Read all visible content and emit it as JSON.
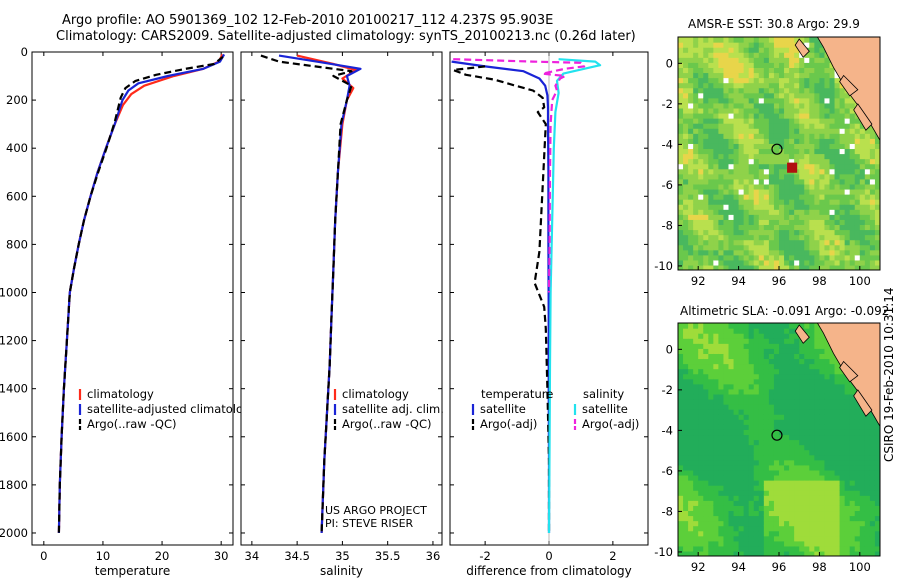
{
  "header": {
    "line1": "Argo profile: AO 5901369_102 12-Feb-2010 20100217_112 4.237S 95.903E",
    "line2": "Climatology: CARS2009. Satellite-adjusted climatology: synTS_20100213.nc (0.26d later)"
  },
  "side_label": "CSIRO 19-Feb-2010 10:31:14",
  "colors": {
    "climatology": "#ff2a1a",
    "satellite": "#1a24d6",
    "argo": "#000000",
    "satellite_salinity": "#22e2ee",
    "argo_salinity": "#ee22dd",
    "land": "#f5b48a",
    "coast": "#000000"
  },
  "chart_data": [
    {
      "type": "line",
      "id": "temperature",
      "xlabel": "temperature",
      "ylabel": "",
      "xlim": [
        -2,
        32
      ],
      "ylim": [
        2050,
        0
      ],
      "xticks": [
        0,
        10,
        20,
        30
      ],
      "yticks": [
        0,
        200,
        400,
        600,
        800,
        1000,
        1200,
        1400,
        1600,
        1800,
        2000
      ],
      "legend": [
        "climatology",
        "satellite-adjusted climatology",
        "Argo(..raw -QC)"
      ],
      "series": [
        {
          "name": "climatology",
          "style": "solid",
          "color": "climatology",
          "x": [
            30.2,
            29.6,
            27,
            22,
            17,
            14.8,
            13.4,
            12,
            10.5,
            9.1,
            7.9,
            6.8,
            5.9,
            5.1,
            4.4,
            3.9,
            3.4,
            3.0,
            2.7,
            2.55
          ],
          "y": [
            10,
            40,
            70,
            100,
            140,
            175,
            220,
            300,
            400,
            500,
            600,
            700,
            800,
            900,
            1000,
            1200,
            1400,
            1600,
            1800,
            2000
          ]
        },
        {
          "name": "satellite-adjusted climatology",
          "style": "solid",
          "color": "satellite",
          "x": [
            30.5,
            29.8,
            27,
            21,
            16,
            14.3,
            13.3,
            12,
            10.5,
            9.1,
            7.9,
            6.8,
            5.9,
            5.1,
            4.4,
            3.9,
            3.4,
            3.0,
            2.7,
            2.55
          ],
          "y": [
            10,
            40,
            70,
            100,
            130,
            160,
            200,
            300,
            400,
            500,
            600,
            700,
            800,
            900,
            1000,
            1200,
            1400,
            1600,
            1800,
            2000
          ]
        },
        {
          "name": "Argo(..raw -QC)",
          "style": "dashed",
          "color": "argo",
          "x": [
            30.3,
            28.8,
            24,
            19,
            15.5,
            13.8,
            13,
            12,
            10.6,
            9.2,
            7.9,
            6.8,
            5.9,
            5.1,
            4.4,
            3.9,
            3.4,
            3.0,
            2.7,
            2.55
          ],
          "y": [
            20,
            50,
            70,
            95,
            120,
            150,
            190,
            290,
            400,
            500,
            600,
            700,
            800,
            900,
            1000,
            1200,
            1400,
            1600,
            1800,
            2000
          ]
        }
      ]
    },
    {
      "type": "line",
      "id": "salinity",
      "xlabel": "salinity",
      "ylabel": "",
      "xlim": [
        33.88,
        36.1
      ],
      "ylim": [
        2050,
        0
      ],
      "xticks": [
        34,
        34.5,
        35,
        35.5,
        36
      ],
      "xtick_labels": [
        "34",
        "34.5",
        "35",
        "35.5",
        "36"
      ],
      "legend": [
        "climatology",
        "satellite adj. clim.",
        "Argo(..raw -QC)"
      ],
      "annotation": [
        "US ARGO PROJECT",
        "PI: STEVE RISER"
      ],
      "series": [
        {
          "name": "climatology",
          "style": "solid",
          "color": "climatology",
          "x": [
            34.5,
            34.9,
            35.15,
            35.0,
            35.12,
            35.05,
            35.0,
            34.95,
            34.92,
            34.9,
            34.88,
            34.86,
            34.83,
            34.8,
            34.78,
            34.77
          ],
          "y": [
            15,
            50,
            75,
            110,
            150,
            200,
            300,
            500,
            700,
            900,
            1100,
            1300,
            1500,
            1700,
            1900,
            2000
          ]
        },
        {
          "name": "satellite adj. clim.",
          "style": "solid",
          "color": "satellite",
          "x": [
            34.3,
            34.8,
            35.2,
            35.05,
            35.08,
            35.05,
            34.99,
            34.95,
            34.92,
            34.9,
            34.88,
            34.86,
            34.83,
            34.8,
            34.78,
            34.77
          ],
          "y": [
            15,
            45,
            70,
            100,
            140,
            200,
            300,
            500,
            700,
            900,
            1100,
            1300,
            1500,
            1700,
            1900,
            2000
          ]
        },
        {
          "name": "Argo(..raw -QC)",
          "style": "dashed",
          "color": "argo",
          "x": [
            34.1,
            34.3,
            34.7,
            35.1,
            34.9,
            35.1,
            35.05,
            34.98,
            34.95,
            34.92,
            34.9,
            34.88,
            34.86,
            34.83,
            34.8,
            34.78,
            34.77
          ],
          "y": [
            15,
            40,
            60,
            80,
            100,
            140,
            200,
            300,
            500,
            700,
            900,
            1100,
            1300,
            1500,
            1700,
            1900,
            2000
          ]
        }
      ]
    },
    {
      "type": "line",
      "id": "difference",
      "xlabel": "difference from climatology",
      "ylabel": "",
      "xlim": [
        -3.1,
        3.1
      ],
      "ylim": [
        2050,
        0
      ],
      "xticks": [
        -2,
        0,
        2
      ],
      "legend_titles": [
        "temperature",
        "salinity"
      ],
      "legend": [
        "satellite",
        "Argo(-adj)",
        "satellite",
        "Argo(-adj)"
      ],
      "series": [
        {
          "name": "temperature satellite",
          "style": "solid",
          "color": "satellite",
          "x": [
            -3.05,
            -2.0,
            -0.8,
            -0.3,
            -0.12,
            -0.05,
            -0.03,
            -0.03,
            -0.02,
            -0.02,
            -0.01,
            -0.01,
            0,
            0
          ],
          "y": [
            40,
            60,
            80,
            110,
            140,
            180,
            230,
            300,
            500,
            800,
            1100,
            1400,
            1700,
            2000
          ]
        },
        {
          "name": "temperature Argo(-adj)",
          "style": "dashed",
          "color": "argo",
          "x": [
            -2.0,
            -3.0,
            -2.6,
            -1.7,
            -1.05,
            -0.5,
            -0.2,
            -0.15,
            -0.35,
            -0.1,
            -0.3,
            -0.45,
            -0.15,
            -0.1,
            -0.05,
            0,
            0
          ],
          "y": [
            60,
            75,
            95,
            115,
            140,
            160,
            190,
            230,
            250,
            300,
            830,
            960,
            1060,
            1150,
            1400,
            1700,
            2000
          ]
        },
        {
          "name": "salinity satellite",
          "style": "solid",
          "color": "satellite_salinity",
          "x": [
            0.3,
            1.45,
            1.6,
            1.1,
            0.45,
            0.25,
            0.3,
            0.2,
            0.15,
            0.1,
            0.05,
            0.03,
            0.02,
            0
          ],
          "y": [
            30,
            40,
            55,
            70,
            90,
            120,
            170,
            250,
            400,
            700,
            1000,
            1300,
            1600,
            2000
          ]
        },
        {
          "name": "salinity Argo(-adj)",
          "style": "dashed",
          "color": "argo_salinity",
          "x": [
            -3.0,
            -0.5,
            1.0,
            1.1,
            0.5,
            -0.2,
            0.5,
            0.35,
            0.2,
            0.25,
            0.1,
            0.05,
            0.03,
            0.02,
            0
          ],
          "y": [
            30,
            40,
            45,
            60,
            70,
            90,
            100,
            110,
            140,
            160,
            200,
            300,
            500,
            800,
            1000
          ]
        }
      ]
    },
    {
      "type": "heatmap",
      "id": "sst_map",
      "title": "AMSR-E SST: 30.8  Argo: 29.9",
      "xlim": [
        91,
        101
      ],
      "ylim": [
        -10.2,
        1.3
      ],
      "xticks": [
        92,
        94,
        96,
        98,
        100
      ],
      "yticks": [
        -10,
        -8,
        -6,
        -4,
        -2,
        0
      ],
      "marker": {
        "lon": 95.9,
        "lat": -4.237
      }
    },
    {
      "type": "heatmap",
      "id": "sla_map",
      "title": "Altimetric SLA: -0.091  Argo: -0.092",
      "xlim": [
        91,
        101
      ],
      "ylim": [
        -10.2,
        1.3
      ],
      "xticks": [
        92,
        94,
        96,
        98,
        100
      ],
      "yticks": [
        -10,
        -8,
        -6,
        -4,
        -2,
        0
      ],
      "marker": {
        "lon": 95.9,
        "lat": -4.237
      }
    }
  ]
}
